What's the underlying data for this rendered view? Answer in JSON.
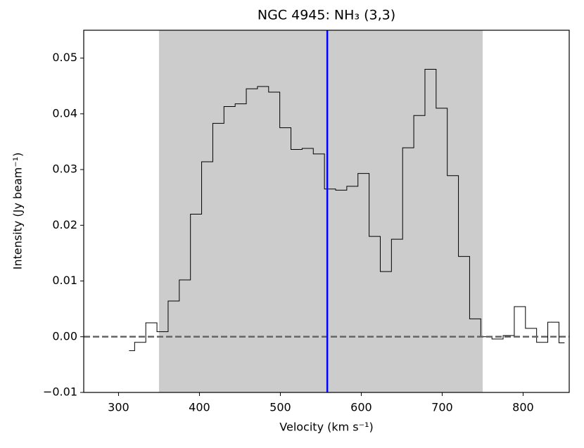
{
  "chart_data": {
    "type": "step",
    "title": "NGC 4945: NH₃ (3,3)",
    "xlabel": "Velocity (km s⁻¹)",
    "ylabel": "Intensity (Jy beam⁻¹)",
    "x": [
      313,
      326.8,
      340.6,
      354.4,
      368.2,
      382,
      395.8,
      409.6,
      423.4,
      437.2,
      451,
      464.8,
      478.6,
      492.4,
      506.2,
      520,
      533.8,
      547.6,
      561.4,
      575.2,
      589,
      602.8,
      616.6,
      630.4,
      644.2,
      658,
      671.8,
      685.6,
      699.4,
      713.2,
      727,
      740.8,
      754.6,
      768.4,
      782.2,
      796,
      809.8,
      823.6,
      837.4,
      851.2
    ],
    "values": [
      -0.0025,
      -0.001,
      0.0025,
      0.0009,
      0.0064,
      0.0102,
      0.022,
      0.0314,
      0.0383,
      0.0413,
      0.0418,
      0.0445,
      0.0449,
      0.0439,
      0.0375,
      0.0336,
      0.0338,
      0.0328,
      0.0265,
      0.0263,
      0.027,
      0.0293,
      0.018,
      0.0117,
      0.0175,
      0.0339,
      0.0397,
      0.048,
      0.041,
      0.0289,
      0.0144,
      0.0032,
      0.0,
      -0.0004,
      0.0002,
      0.0054,
      0.0015,
      -0.001,
      0.0026,
      -0.0011
    ],
    "color": "#000000",
    "shaded_span": [
      350,
      750
    ],
    "shade_color": "#cccccc",
    "vline": 558,
    "vline_color": "#0000ff",
    "hline": 0,
    "hline_color": "#666666",
    "xlim": [
      257,
      857
    ],
    "ylim": [
      -0.01,
      0.055
    ],
    "xticks": [
      300,
      400,
      500,
      600,
      700,
      800
    ],
    "yticks": [
      {
        "value": -0.01,
        "label": "−0.01"
      },
      {
        "value": 0,
        "label": "0.00"
      },
      0.01,
      0.02,
      0.03,
      0.04,
      0.05
    ]
  }
}
